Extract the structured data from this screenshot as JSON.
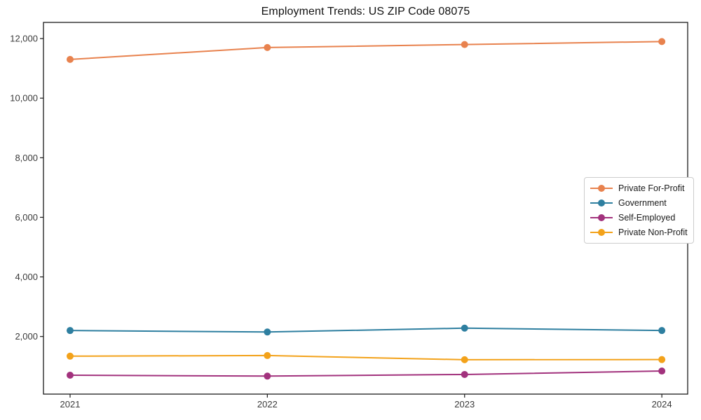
{
  "chart_data": {
    "type": "line",
    "title": "Employment Trends: US ZIP Code 08075",
    "xlabel": "",
    "ylabel": "",
    "categories": [
      "2021",
      "2022",
      "2023",
      "2024"
    ],
    "x": [
      2021,
      2022,
      2023,
      2024
    ],
    "series": [
      {
        "name": "Private For-Profit",
        "color": "#e8824e",
        "values": [
          11300,
          11700,
          11800,
          11900
        ]
      },
      {
        "name": "Government",
        "color": "#2e7fa0",
        "values": [
          2200,
          2150,
          2280,
          2200
        ]
      },
      {
        "name": "Self-Employed",
        "color": "#a2327d",
        "values": [
          700,
          670,
          725,
          840
        ]
      },
      {
        "name": "Private Non-Profit",
        "color": "#f3a21a",
        "values": [
          1340,
          1360,
          1220,
          1225
        ]
      }
    ],
    "y_ticks": [
      2000,
      4000,
      6000,
      8000,
      10000,
      12000
    ],
    "y_tick_labels": [
      "2,000",
      "4,000",
      "6,000",
      "8,000",
      "10,000",
      "12,000"
    ],
    "xlim": [
      2020.865,
      2024.131
    ],
    "ylim": [
      66,
      12543
    ],
    "grid": false,
    "legend_position": "center right",
    "marker": "circle",
    "axis_color": "#1a1a1a",
    "tick_label_color": "#3a3a3a",
    "background_color": "#ffffff"
  }
}
